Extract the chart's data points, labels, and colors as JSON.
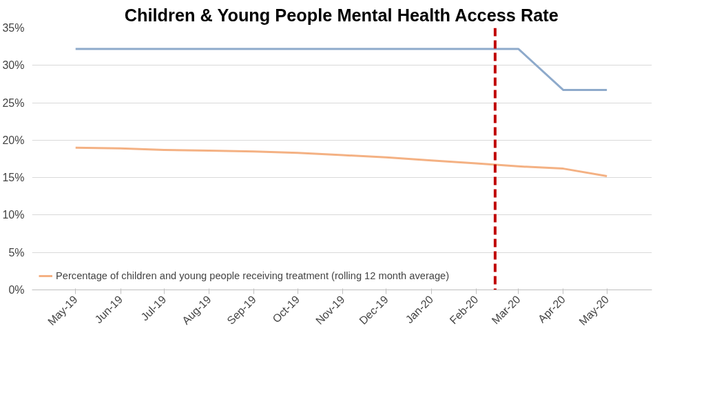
{
  "chart_data": {
    "type": "line",
    "title": "Children & Young People Mental Health Access Rate",
    "x": [
      "2019-05",
      "2019-06",
      "2019-07",
      "2019-08",
      "2019-09",
      "2019-10",
      "2019-11",
      "2019-12",
      "2020-01",
      "2020-02",
      "2020-03",
      "2020-04",
      "2020-05"
    ],
    "series": [
      {
        "color": "#8eaacb",
        "values": [
          32.2,
          32.2,
          32.2,
          32.2,
          32.2,
          32.2,
          32.2,
          32.2,
          32.2,
          32.2,
          32.2,
          26.7,
          26.7
        ]
      },
      {
        "name": "Percentage of children and young people receiving treatment (rolling 12 month average)",
        "color": "#f4b183",
        "values": [
          19.0,
          18.9,
          18.7,
          18.6,
          18.5,
          18.3,
          18.0,
          17.7,
          17.3,
          16.9,
          16.5,
          16.2,
          15.2
        ]
      }
    ],
    "xlim": [
      "2019-04",
      "2020-06"
    ],
    "xticks": [
      {
        "value": "2019-05",
        "label": "May-19"
      },
      {
        "value": "2019-06",
        "label": "Jun-19"
      },
      {
        "value": "2019-07",
        "label": "Jul-19"
      },
      {
        "value": "2019-08",
        "label": "Aug-19"
      },
      {
        "value": "2019-09",
        "label": "Sep-19"
      },
      {
        "value": "2019-10",
        "label": "Oct-19"
      },
      {
        "value": "2019-11",
        "label": "Nov-19"
      },
      {
        "value": "2019-12",
        "label": "Dec-19"
      },
      {
        "value": "2020-01",
        "label": "Jan-20"
      },
      {
        "value": "2020-02",
        "label": "Feb-20"
      },
      {
        "value": "2020-03",
        "label": "Mar-20"
      },
      {
        "value": "2020-04",
        "label": "Apr-20"
      },
      {
        "value": "2020-05",
        "label": "May-20"
      }
    ],
    "ylim": [
      0,
      35
    ],
    "yticks": [
      {
        "value": 0,
        "label": "0%"
      },
      {
        "value": 5,
        "label": "5%"
      },
      {
        "value": 10,
        "label": "10%"
      },
      {
        "value": 15,
        "label": "15%"
      },
      {
        "value": 20,
        "label": "20%"
      },
      {
        "value": 25,
        "label": "25%"
      },
      {
        "value": 30,
        "label": "30%"
      },
      {
        "value": 35,
        "label": "35%"
      }
    ],
    "ref_lines": [
      {
        "axis": "x",
        "value": "2020-02-14",
        "color": "#c00000",
        "line_style": "dashed"
      }
    ],
    "grid": "y",
    "legend": "bottom",
    "marker": "none",
    "line_style": "solid"
  }
}
